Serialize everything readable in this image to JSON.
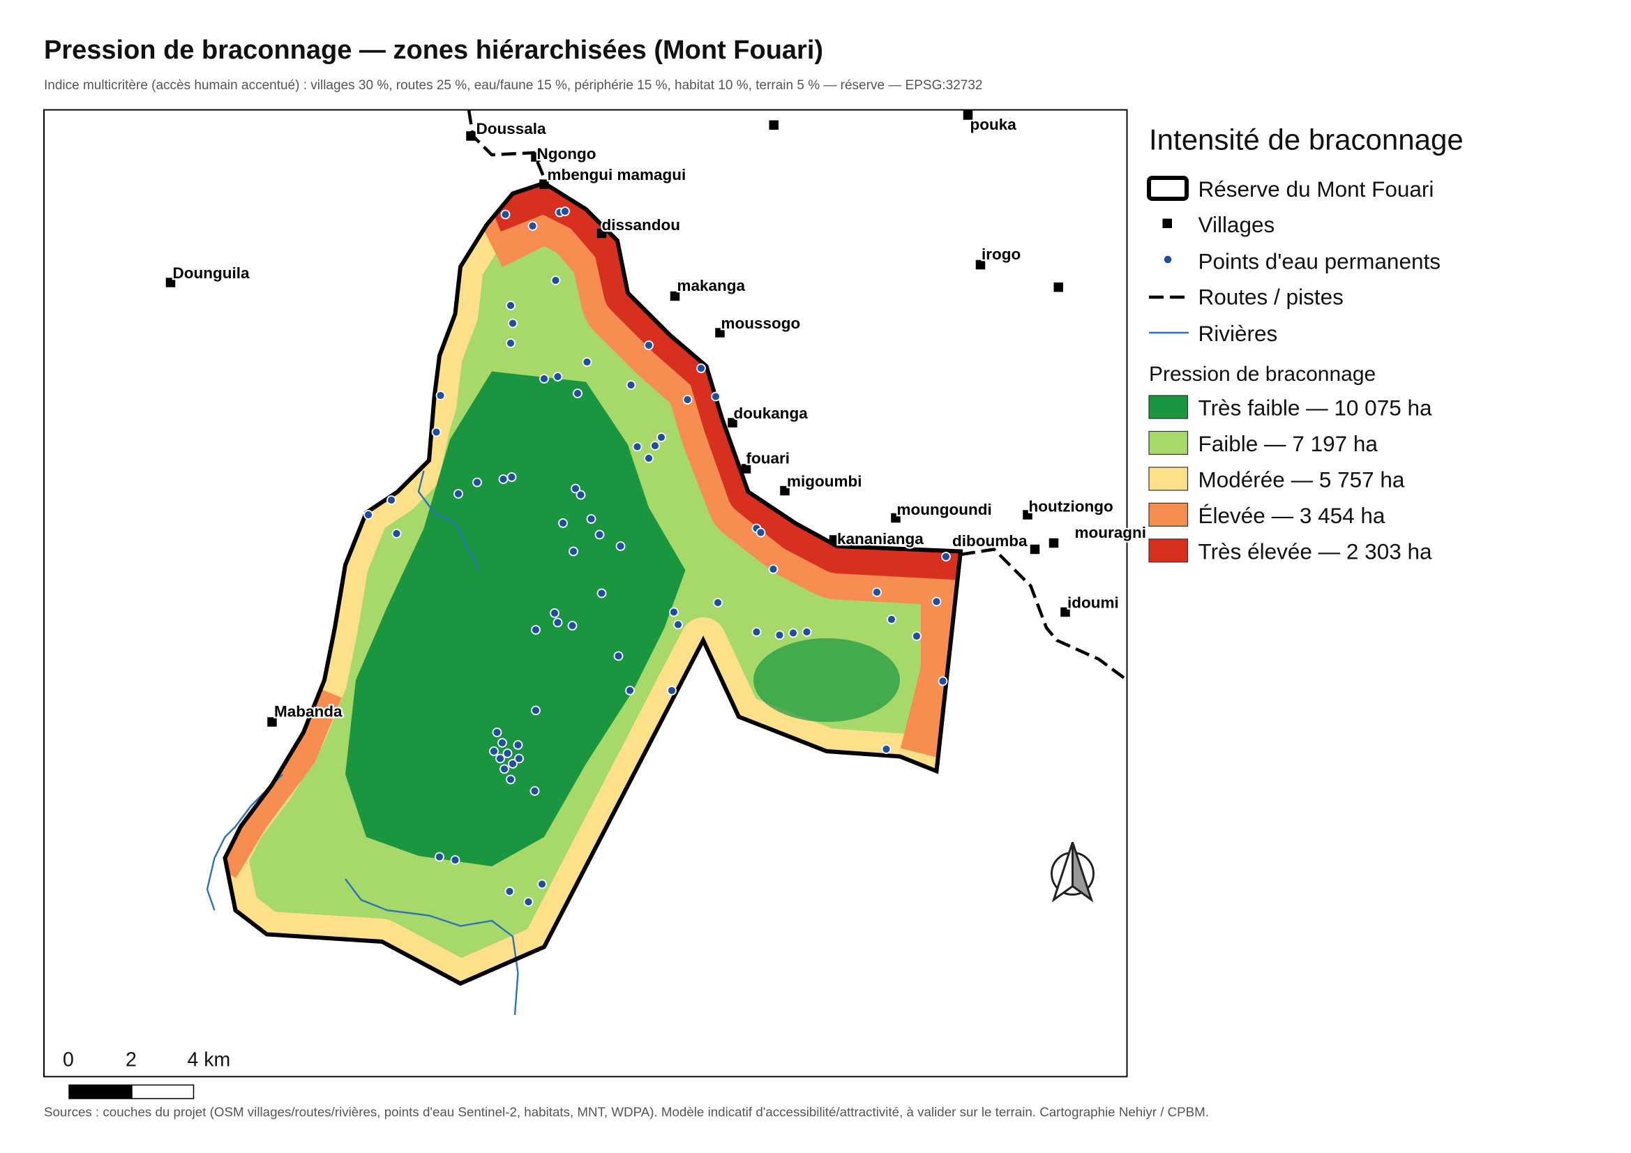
{
  "header": {
    "title": "Pression de braconnage — zones hiérarchisées (Mont Fouari)",
    "subtitle": "Indice multicritère (accès humain accentué) : villages 30 %, routes 25 %, eau/faune 15 %, périphérie 15 %, habitat 10 %, terrain 5 % — réserve — EPSG:32732"
  },
  "villages": [
    {
      "name": "Doussala"
    },
    {
      "name": "Ngongo"
    },
    {
      "name": "mbengui mamagui"
    },
    {
      "name": "dissandou"
    },
    {
      "name": "Dounguila"
    },
    {
      "name": "makanga"
    },
    {
      "name": "moussogo"
    },
    {
      "name": "doukanga"
    },
    {
      "name": "fouari"
    },
    {
      "name": "migoumbi"
    },
    {
      "name": "moungoundi"
    },
    {
      "name": "houtziongo"
    },
    {
      "name": "kananianga"
    },
    {
      "name": "diboumba"
    },
    {
      "name": "mouragni"
    },
    {
      "name": "idoumi"
    },
    {
      "name": "irogo"
    },
    {
      "name": "pouka"
    },
    {
      "name": "Mabanda"
    }
  ],
  "legend": {
    "title": "Intensité de braconnage",
    "reserve": "Réserve du Mont Fouari",
    "villages": "Villages",
    "water": "Points d'eau permanents",
    "roads": "Routes / pistes",
    "rivers": "Rivières",
    "pressure_title": "Pression de braconnage",
    "classes": [
      {
        "label": "Très faible — 10 075 ha",
        "color": "#1a9641"
      },
      {
        "label": "Faible — 7 197 ha",
        "color": "#a6d96a"
      },
      {
        "label": "Modérée — 5 757 ha",
        "color": "#fee08b"
      },
      {
        "label": "Élevée — 3 454 ha",
        "color": "#f88d52"
      },
      {
        "label": "Très élevée — 2 303 ha",
        "color": "#d7301f"
      }
    ]
  },
  "scale_bar": {
    "labels": [
      "0",
      "2",
      "4 km"
    ]
  },
  "footer": {
    "sources": "Sources : couches du projet (OSM villages/routes/rivières, points d'eau Sentinel-2, habitats, MNT, WDPA). Modèle indicatif d'accessibilité/attractivité, à valider sur le terrain. Cartographie Nehiyr / CPBM."
  }
}
